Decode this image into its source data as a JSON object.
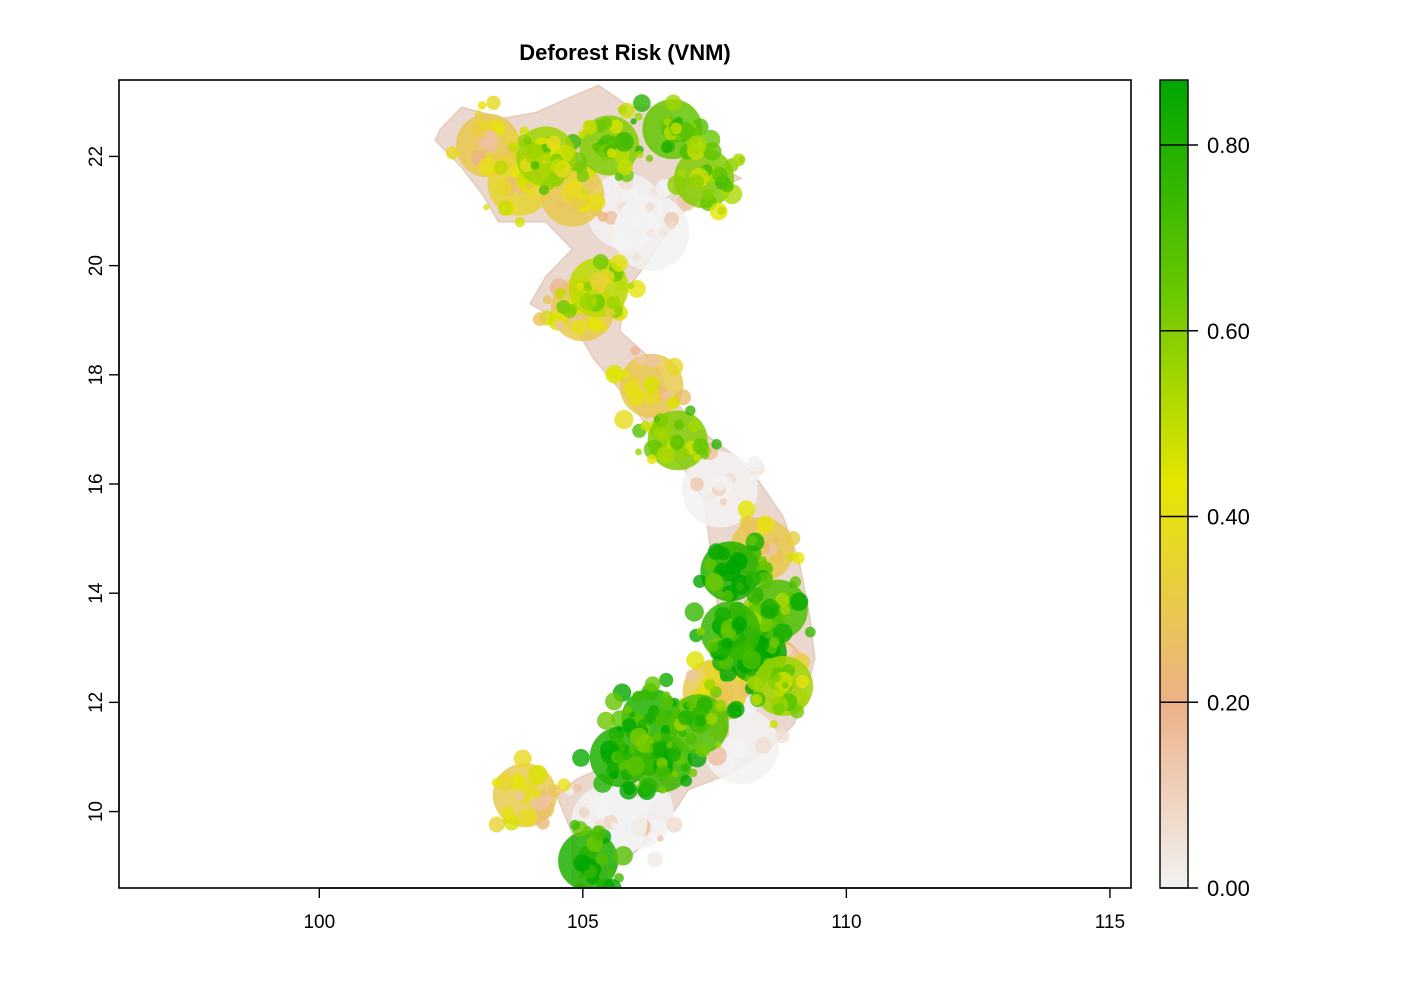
{
  "chart_data": {
    "type": "heatmap",
    "title": "Deforest Risk (VNM)",
    "xlabel": "",
    "ylabel": "",
    "xlim": [
      96.2,
      115.4
    ],
    "ylim": [
      8.6,
      23.4
    ],
    "x_ticks": [
      100,
      105,
      110,
      115
    ],
    "y_ticks": [
      10,
      12,
      14,
      16,
      18,
      20,
      22
    ],
    "x_tick_labels": [
      "100",
      "105",
      "110",
      "115"
    ],
    "y_tick_labels": [
      "10",
      "12",
      "14",
      "16",
      "18",
      "20",
      "22"
    ],
    "legend": {
      "placement": "right",
      "min": 0.0,
      "max": 0.87,
      "ticks": [
        0.0,
        0.2,
        0.4,
        0.6,
        0.8
      ],
      "tick_labels": [
        "0.00",
        "0.20",
        "0.40",
        "0.60",
        "0.80"
      ],
      "colors": [
        "#f2f2f2",
        "#ecb188",
        "#e6e600",
        "#63c600",
        "#00a600"
      ]
    },
    "region_outline": [
      [
        102.3,
        22.5
      ],
      [
        102.7,
        22.9
      ],
      [
        103.5,
        22.7
      ],
      [
        104.1,
        22.8
      ],
      [
        104.8,
        23.1
      ],
      [
        105.3,
        23.3
      ],
      [
        105.9,
        22.9
      ],
      [
        106.6,
        22.9
      ],
      [
        106.8,
        22.6
      ],
      [
        107.4,
        21.9
      ],
      [
        108.0,
        21.6
      ],
      [
        107.3,
        21.3
      ],
      [
        106.8,
        20.9
      ],
      [
        106.6,
        20.6
      ],
      [
        106.1,
        19.9
      ],
      [
        105.8,
        19.5
      ],
      [
        105.7,
        18.8
      ],
      [
        106.4,
        18.2
      ],
      [
        106.6,
        17.7
      ],
      [
        107.2,
        17.0
      ],
      [
        107.9,
        16.5
      ],
      [
        108.3,
        16.1
      ],
      [
        108.8,
        15.4
      ],
      [
        109.1,
        14.6
      ],
      [
        109.3,
        13.6
      ],
      [
        109.4,
        12.8
      ],
      [
        109.2,
        12.1
      ],
      [
        109.0,
        11.6
      ],
      [
        108.6,
        11.2
      ],
      [
        107.8,
        10.7
      ],
      [
        107.0,
        10.4
      ],
      [
        106.8,
        10.1
      ],
      [
        106.4,
        9.6
      ],
      [
        105.8,
        9.1
      ],
      [
        105.1,
        8.6
      ],
      [
        104.8,
        8.7
      ],
      [
        104.8,
        9.6
      ],
      [
        104.5,
        10.3
      ],
      [
        104.9,
        10.6
      ],
      [
        105.6,
        10.9
      ],
      [
        106.2,
        11.1
      ],
      [
        106.6,
        11.5
      ],
      [
        107.2,
        12.0
      ],
      [
        107.5,
        12.6
      ],
      [
        107.6,
        13.4
      ],
      [
        107.5,
        14.2
      ],
      [
        107.4,
        15.0
      ],
      [
        107.3,
        15.7
      ],
      [
        106.9,
        16.3
      ],
      [
        106.4,
        16.8
      ],
      [
        105.9,
        17.5
      ],
      [
        105.2,
        18.3
      ],
      [
        104.9,
        18.8
      ],
      [
        104.0,
        19.3
      ],
      [
        104.3,
        19.8
      ],
      [
        104.8,
        20.3
      ],
      [
        104.3,
        20.8
      ],
      [
        103.4,
        20.8
      ],
      [
        103.1,
        21.3
      ],
      [
        102.7,
        21.8
      ],
      [
        102.2,
        22.3
      ]
    ],
    "high_risk_areas": [
      {
        "lon": 106.3,
        "lat": 11.7,
        "value": 0.8
      },
      {
        "lon": 105.7,
        "lat": 11.0,
        "value": 0.8
      },
      {
        "lon": 106.5,
        "lat": 10.9,
        "value": 0.75
      },
      {
        "lon": 105.1,
        "lat": 9.1,
        "value": 0.8
      },
      {
        "lon": 108.3,
        "lat": 12.9,
        "value": 0.85
      },
      {
        "lon": 107.8,
        "lat": 14.4,
        "value": 0.8
      },
      {
        "lon": 108.7,
        "lat": 13.7,
        "value": 0.7
      },
      {
        "lon": 107.8,
        "lat": 13.3,
        "value": 0.75
      },
      {
        "lon": 106.7,
        "lat": 22.5,
        "value": 0.65
      },
      {
        "lon": 105.5,
        "lat": 22.2,
        "value": 0.6
      },
      {
        "lon": 104.3,
        "lat": 22.0,
        "value": 0.55
      },
      {
        "lon": 107.3,
        "lat": 21.6,
        "value": 0.6
      },
      {
        "lon": 105.3,
        "lat": 19.6,
        "value": 0.5
      },
      {
        "lon": 106.8,
        "lat": 16.8,
        "value": 0.6
      },
      {
        "lon": 107.2,
        "lat": 11.6,
        "value": 0.7
      },
      {
        "lon": 108.8,
        "lat": 12.3,
        "value": 0.55
      }
    ],
    "medium_risk_areas": [
      {
        "lon": 103.2,
        "lat": 22.2,
        "value": 0.3
      },
      {
        "lon": 103.8,
        "lat": 21.5,
        "value": 0.35
      },
      {
        "lon": 104.8,
        "lat": 21.3,
        "value": 0.3
      },
      {
        "lon": 105.0,
        "lat": 19.2,
        "value": 0.3
      },
      {
        "lon": 106.3,
        "lat": 17.8,
        "value": 0.3
      },
      {
        "lon": 108.6,
        "lat": 12.6,
        "value": 0.25
      },
      {
        "lon": 108.4,
        "lat": 14.8,
        "value": 0.3
      },
      {
        "lon": 107.5,
        "lat": 12.2,
        "value": 0.3
      },
      {
        "lon": 103.9,
        "lat": 10.3,
        "value": 0.3
      }
    ],
    "low_risk_areas": [
      {
        "lon": 105.8,
        "lat": 21.0,
        "value": 0.0
      },
      {
        "lon": 106.3,
        "lat": 20.6,
        "value": 0.0
      },
      {
        "lon": 106.0,
        "lat": 10.0,
        "value": 0.0
      },
      {
        "lon": 105.5,
        "lat": 9.8,
        "value": 0.0
      },
      {
        "lon": 108.0,
        "lat": 11.2,
        "value": 0.0
      },
      {
        "lon": 107.6,
        "lat": 15.9,
        "value": 0.0
      }
    ]
  }
}
